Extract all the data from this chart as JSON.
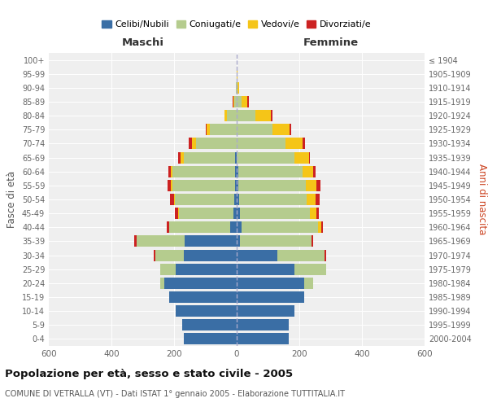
{
  "age_groups": [
    "0-4",
    "5-9",
    "10-14",
    "15-19",
    "20-24",
    "25-29",
    "30-34",
    "35-39",
    "40-44",
    "45-49",
    "50-54",
    "55-59",
    "60-64",
    "65-69",
    "70-74",
    "75-79",
    "80-84",
    "85-89",
    "90-94",
    "95-99",
    "100+"
  ],
  "birth_years": [
    "2000-2004",
    "1995-1999",
    "1990-1994",
    "1985-1989",
    "1980-1984",
    "1975-1979",
    "1970-1974",
    "1965-1969",
    "1960-1964",
    "1955-1959",
    "1950-1954",
    "1945-1949",
    "1940-1944",
    "1935-1939",
    "1930-1934",
    "1925-1929",
    "1920-1924",
    "1915-1919",
    "1910-1914",
    "1905-1909",
    "≤ 1904"
  ],
  "male": {
    "celibi": [
      170,
      175,
      195,
      215,
      230,
      195,
      170,
      165,
      20,
      10,
      8,
      5,
      5,
      5,
      0,
      0,
      0,
      0,
      0,
      0,
      0
    ],
    "coniugati": [
      0,
      0,
      0,
      0,
      15,
      50,
      90,
      155,
      195,
      175,
      190,
      200,
      200,
      165,
      130,
      85,
      30,
      8,
      2,
      1,
      0
    ],
    "vedovi": [
      0,
      0,
      0,
      0,
      0,
      0,
      0,
      0,
      1,
      2,
      3,
      5,
      5,
      8,
      12,
      10,
      8,
      3,
      1,
      0,
      0
    ],
    "divorziati": [
      0,
      0,
      0,
      0,
      0,
      0,
      5,
      8,
      8,
      10,
      12,
      12,
      8,
      10,
      10,
      3,
      2,
      2,
      0,
      0,
      0
    ]
  },
  "female": {
    "nubili": [
      165,
      165,
      185,
      215,
      215,
      185,
      130,
      10,
      15,
      10,
      8,
      5,
      5,
      0,
      0,
      0,
      0,
      0,
      0,
      0,
      0
    ],
    "coniugate": [
      0,
      0,
      0,
      0,
      30,
      100,
      150,
      230,
      245,
      225,
      215,
      215,
      205,
      185,
      155,
      115,
      60,
      15,
      3,
      1,
      0
    ],
    "vedove": [
      0,
      0,
      0,
      0,
      0,
      0,
      0,
      0,
      10,
      20,
      30,
      35,
      35,
      45,
      55,
      55,
      50,
      20,
      5,
      2,
      0
    ],
    "divorziate": [
      0,
      0,
      0,
      0,
      0,
      0,
      5,
      5,
      5,
      8,
      12,
      12,
      8,
      5,
      8,
      5,
      3,
      5,
      0,
      0,
      0
    ]
  },
  "colors": {
    "celibi": "#3a6ea5",
    "coniugati": "#b5cc8e",
    "vedovi": "#f5c518",
    "divorziati": "#cc2222"
  },
  "title": "Popolazione per età, sesso e stato civile - 2005",
  "subtitle": "COMUNE DI VETRALLA (VT) - Dati ISTAT 1° gennaio 2005 - Elaborazione TUTTITALIA.IT",
  "xlabel_left": "Maschi",
  "xlabel_right": "Femmine",
  "ylabel_left": "Fasce di età",
  "ylabel_right": "Anni di nascita",
  "xlim": 600,
  "legend_labels": [
    "Celibi/Nubili",
    "Coniugati/e",
    "Vedovi/e",
    "Divorziati/e"
  ],
  "background_color": "#ffffff",
  "bar_height": 0.82
}
